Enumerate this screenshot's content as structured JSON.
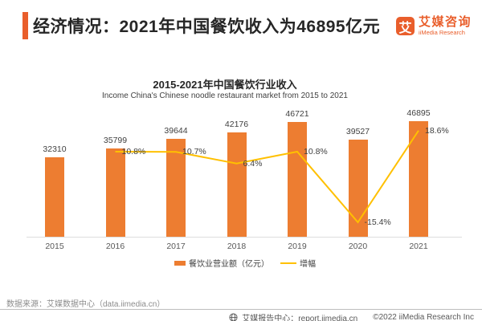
{
  "header": {
    "title": "经济情况：2021年中国餐饮收入为46895亿元",
    "logo": {
      "glyph": "艾",
      "name_cn": "艾媒咨询",
      "name_en": "iiMedia Research"
    }
  },
  "colors": {
    "brand_accent": "#E95E2B",
    "bar": "#ED7D31",
    "line": "#FFC000"
  },
  "chart_data": {
    "type": "bar",
    "title": "2015-2021年中国餐饮行业收入",
    "subtitle": "Income China's Chinese noodle restaurant market from 2015 to 2021",
    "categories": [
      "2015",
      "2016",
      "2017",
      "2018",
      "2019",
      "2020",
      "2021"
    ],
    "series": [
      {
        "name": "餐饮业营业额（亿元）",
        "type": "bar",
        "color": "#ED7D31",
        "values": [
          32310,
          35799,
          39644,
          42176,
          46721,
          39527,
          46895
        ]
      },
      {
        "name": "增幅",
        "type": "line",
        "color": "#FFC000",
        "unit": "%",
        "values": [
          null,
          10.8,
          10.7,
          6.4,
          10.8,
          -15.4,
          18.6
        ]
      }
    ],
    "value_labels": true,
    "grid": false,
    "y_axis_visible": false,
    "legend_position": "bottom"
  },
  "source": "数据来源：艾媒数据中心（data.iimedia.cn）",
  "footer": {
    "report_center": "艾媒报告中心：report.iimedia.cn",
    "copyright": "©2022 iiMedia Research Inc"
  }
}
